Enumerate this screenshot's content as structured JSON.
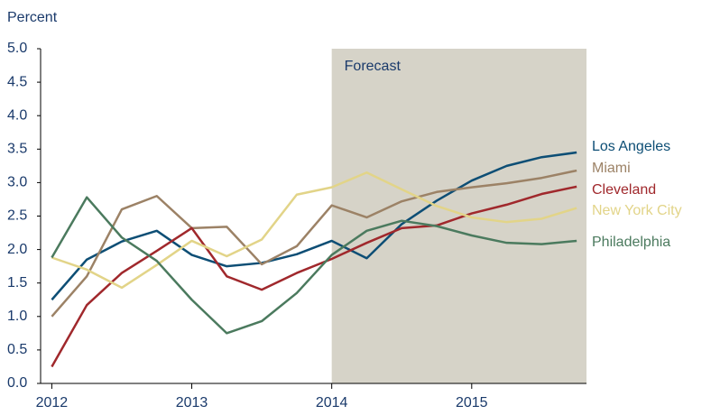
{
  "chart_data": {
    "type": "line",
    "y_axis_label": "Percent",
    "annotation": "Forecast",
    "forecast_start": 2014,
    "x": [
      2012,
      2012.25,
      2012.5,
      2012.75,
      2013,
      2013.25,
      2013.5,
      2013.75,
      2014,
      2014.25,
      2014.5,
      2014.75,
      2015,
      2015.25,
      2015.5,
      2015.75
    ],
    "series": [
      {
        "name": "Los Angeles",
        "color": "#0d4e75",
        "values": [
          1.25,
          1.85,
          2.12,
          2.28,
          1.92,
          1.75,
          1.8,
          1.93,
          2.13,
          1.87,
          2.38,
          2.73,
          3.03,
          3.25,
          3.38,
          3.45
        ]
      },
      {
        "name": "Miami",
        "color": "#9c8266",
        "values": [
          1.0,
          1.6,
          2.6,
          2.8,
          2.32,
          2.34,
          1.78,
          2.05,
          2.66,
          2.48,
          2.72,
          2.86,
          2.93,
          2.99,
          3.07,
          3.18
        ]
      },
      {
        "name": "Cleveland",
        "color": "#a0282c",
        "values": [
          0.25,
          1.17,
          1.65,
          1.98,
          2.32,
          1.6,
          1.4,
          1.65,
          1.86,
          2.1,
          2.32,
          2.36,
          2.54,
          2.67,
          2.83,
          2.94
        ]
      },
      {
        "name": "New York City",
        "color": "#e2d488",
        "values": [
          1.88,
          1.7,
          1.43,
          1.77,
          2.13,
          1.9,
          2.15,
          2.82,
          2.93,
          3.15,
          2.9,
          2.65,
          2.48,
          2.41,
          2.46,
          2.62
        ]
      },
      {
        "name": "Philadelphia",
        "color": "#4b7a5e",
        "values": [
          1.88,
          2.78,
          2.18,
          1.83,
          1.25,
          0.75,
          0.93,
          1.35,
          1.92,
          2.28,
          2.43,
          2.35,
          2.21,
          2.1,
          2.08,
          2.13
        ]
      }
    ],
    "xlim": [
      2011.92,
      2015.82
    ],
    "xticks": [
      2012,
      2013,
      2014,
      2015
    ],
    "ylim": [
      0,
      5
    ],
    "yticks": [
      {
        "value": 0,
        "label": "0.0"
      },
      {
        "value": 0.5,
        "label": "0.5"
      },
      {
        "value": 1,
        "label": "1.0"
      },
      {
        "value": 1.5,
        "label": "1.5"
      },
      {
        "value": 2,
        "label": "2.0"
      },
      {
        "value": 2.5,
        "label": "2.5"
      },
      {
        "value": 3,
        "label": "3.0"
      },
      {
        "value": 3.5,
        "label": "3.5"
      },
      {
        "value": 4,
        "label": "4.0"
      },
      {
        "value": 4.5,
        "label": "4.5"
      },
      {
        "value": 5,
        "label": "5.0"
      }
    ],
    "shade_color": "#d6d3c8"
  }
}
